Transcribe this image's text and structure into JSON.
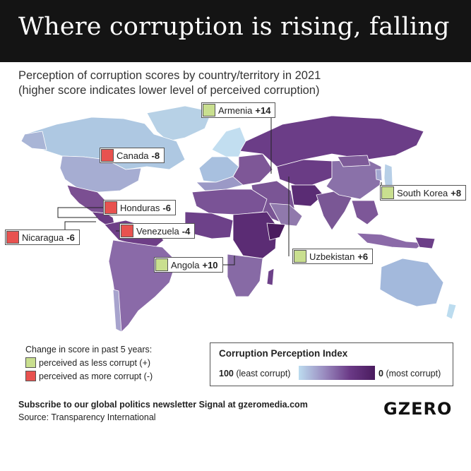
{
  "header": {
    "title": "Where corruption is rising, falling"
  },
  "subtitle": {
    "line1": "Perception of corruption scores by country/territory in 2021",
    "line2": "(higher score indicates lower level of perceived corruption)"
  },
  "colors": {
    "less_corrupt_marker": "#c9df8f",
    "more_corrupt_marker": "#e8524f",
    "scale_least_corrupt": "#bcdcef",
    "scale_most_corrupt": "#4a1b5e",
    "ocean": "#ffffff",
    "borders": "#ffffff"
  },
  "callouts": [
    {
      "id": "armenia",
      "country": "Armenia",
      "change": "+14",
      "direction": "less-corrupt"
    },
    {
      "id": "canada",
      "country": "Canada",
      "change": "-8",
      "direction": "more-corrupt"
    },
    {
      "id": "south-korea",
      "country": "South Korea",
      "change": "+8",
      "direction": "less-corrupt"
    },
    {
      "id": "honduras",
      "country": "Honduras",
      "change": "-6",
      "direction": "more-corrupt"
    },
    {
      "id": "venezuela",
      "country": "Venezuela",
      "change": "-4",
      "direction": "more-corrupt"
    },
    {
      "id": "nicaragua",
      "country": "Nicaragua",
      "change": "-6",
      "direction": "more-corrupt"
    },
    {
      "id": "angola",
      "country": "Angola",
      "change": "+10",
      "direction": "less-corrupt"
    },
    {
      "id": "uzbekistan",
      "country": "Uzbekistan",
      "change": "+6",
      "direction": "less-corrupt"
    }
  ],
  "change_legend": {
    "title": "Change in score in past 5 years:",
    "less": "perceived as less corrupt (+)",
    "more": "perceived as more corrupt (-)"
  },
  "cpi_legend": {
    "title": "Corruption Perception Index",
    "low_value": "100",
    "low_label": "(least corrupt)",
    "high_value": "0",
    "high_label": "(most corrupt)"
  },
  "footer": {
    "subscribe": "Subscribe to our global politics newsletter Signal at gzeromedia.com",
    "source": "Source: Transparency International"
  },
  "logo": "GZERO"
}
